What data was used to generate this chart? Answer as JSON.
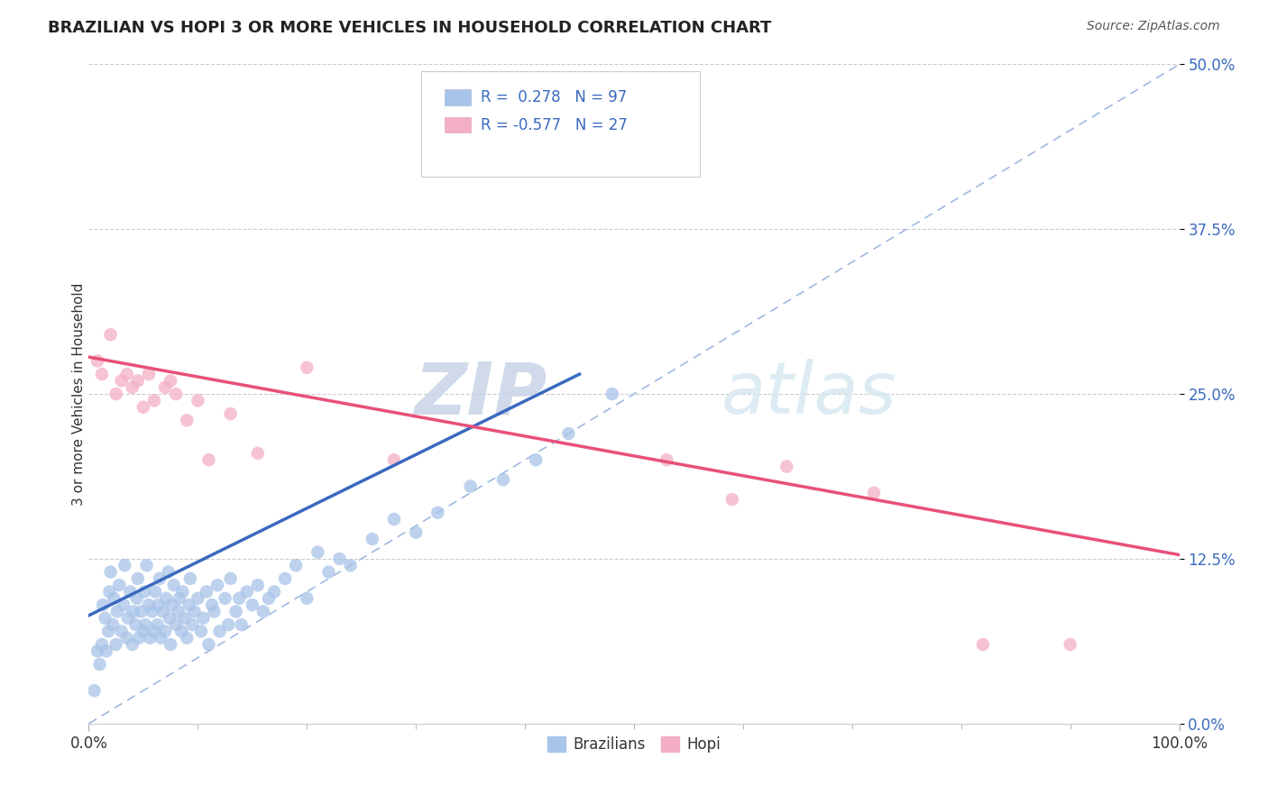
{
  "title": "BRAZILIAN VS HOPI 3 OR MORE VEHICLES IN HOUSEHOLD CORRELATION CHART",
  "source": "Source: ZipAtlas.com",
  "ylabel": "3 or more Vehicles in Household",
  "xlim": [
    0.0,
    1.0
  ],
  "ylim": [
    0.0,
    0.5
  ],
  "xtick_labels": [
    "0.0%",
    "100.0%"
  ],
  "ytick_labels": [
    "0.0%",
    "12.5%",
    "25.0%",
    "37.5%",
    "50.0%"
  ],
  "ytick_positions": [
    0.0,
    0.125,
    0.25,
    0.375,
    0.5
  ],
  "legend_labels": [
    "Brazilians",
    "Hopi"
  ],
  "r_brazilian": 0.278,
  "n_brazilian": 97,
  "r_hopi": -0.577,
  "n_hopi": 27,
  "color_brazilian": "#a8c4e8",
  "color_hopi": "#f4afc4",
  "line_color_brazilian": "#3a6abf",
  "line_color_hopi": "#e8507a",
  "diagonal_color": "#a0b8e0",
  "watermark_color": "#d8e4f0",
  "watermark_zip_color": "#c8d8e8",
  "watermark": "ZIPatlas",
  "background_color": "#ffffff",
  "br_line_x0": 0.0,
  "br_line_y0": 0.082,
  "br_line_x1": 0.45,
  "br_line_y1": 0.265,
  "hopi_line_x0": 0.0,
  "hopi_line_y0": 0.278,
  "hopi_line_x1": 1.0,
  "hopi_line_y1": 0.128,
  "brazilian_x": [
    0.005,
    0.008,
    0.01,
    0.012,
    0.013,
    0.015,
    0.016,
    0.018,
    0.019,
    0.02,
    0.022,
    0.023,
    0.025,
    0.026,
    0.028,
    0.03,
    0.032,
    0.033,
    0.035,
    0.036,
    0.038,
    0.04,
    0.041,
    0.043,
    0.044,
    0.045,
    0.046,
    0.048,
    0.05,
    0.051,
    0.052,
    0.053,
    0.055,
    0.056,
    0.058,
    0.06,
    0.061,
    0.063,
    0.064,
    0.065,
    0.066,
    0.068,
    0.07,
    0.071,
    0.073,
    0.074,
    0.075,
    0.076,
    0.078,
    0.08,
    0.082,
    0.083,
    0.085,
    0.086,
    0.088,
    0.09,
    0.092,
    0.093,
    0.095,
    0.097,
    0.1,
    0.103,
    0.105,
    0.108,
    0.11,
    0.113,
    0.115,
    0.118,
    0.12,
    0.125,
    0.128,
    0.13,
    0.135,
    0.138,
    0.14,
    0.145,
    0.15,
    0.155,
    0.16,
    0.165,
    0.17,
    0.18,
    0.19,
    0.2,
    0.21,
    0.22,
    0.23,
    0.24,
    0.26,
    0.28,
    0.3,
    0.32,
    0.35,
    0.38,
    0.41,
    0.44,
    0.48
  ],
  "brazilian_y": [
    0.025,
    0.055,
    0.045,
    0.06,
    0.09,
    0.08,
    0.055,
    0.07,
    0.1,
    0.115,
    0.075,
    0.095,
    0.06,
    0.085,
    0.105,
    0.07,
    0.09,
    0.12,
    0.065,
    0.08,
    0.1,
    0.06,
    0.085,
    0.075,
    0.095,
    0.11,
    0.065,
    0.085,
    0.07,
    0.1,
    0.075,
    0.12,
    0.09,
    0.065,
    0.085,
    0.07,
    0.1,
    0.075,
    0.09,
    0.11,
    0.065,
    0.085,
    0.07,
    0.095,
    0.115,
    0.08,
    0.06,
    0.09,
    0.105,
    0.075,
    0.085,
    0.095,
    0.07,
    0.1,
    0.08,
    0.065,
    0.09,
    0.11,
    0.075,
    0.085,
    0.095,
    0.07,
    0.08,
    0.1,
    0.06,
    0.09,
    0.085,
    0.105,
    0.07,
    0.095,
    0.075,
    0.11,
    0.085,
    0.095,
    0.075,
    0.1,
    0.09,
    0.105,
    0.085,
    0.095,
    0.1,
    0.11,
    0.12,
    0.095,
    0.13,
    0.115,
    0.125,
    0.12,
    0.14,
    0.155,
    0.145,
    0.16,
    0.18,
    0.185,
    0.2,
    0.22,
    0.25
  ],
  "hopi_x": [
    0.008,
    0.012,
    0.02,
    0.025,
    0.03,
    0.035,
    0.04,
    0.045,
    0.05,
    0.055,
    0.06,
    0.07,
    0.075,
    0.08,
    0.09,
    0.1,
    0.11,
    0.13,
    0.155,
    0.2,
    0.28,
    0.53,
    0.59,
    0.64,
    0.72,
    0.82,
    0.9
  ],
  "hopi_y": [
    0.275,
    0.265,
    0.295,
    0.25,
    0.26,
    0.265,
    0.255,
    0.26,
    0.24,
    0.265,
    0.245,
    0.255,
    0.26,
    0.25,
    0.23,
    0.245,
    0.2,
    0.235,
    0.205,
    0.27,
    0.2,
    0.2,
    0.17,
    0.195,
    0.175,
    0.06,
    0.06
  ]
}
